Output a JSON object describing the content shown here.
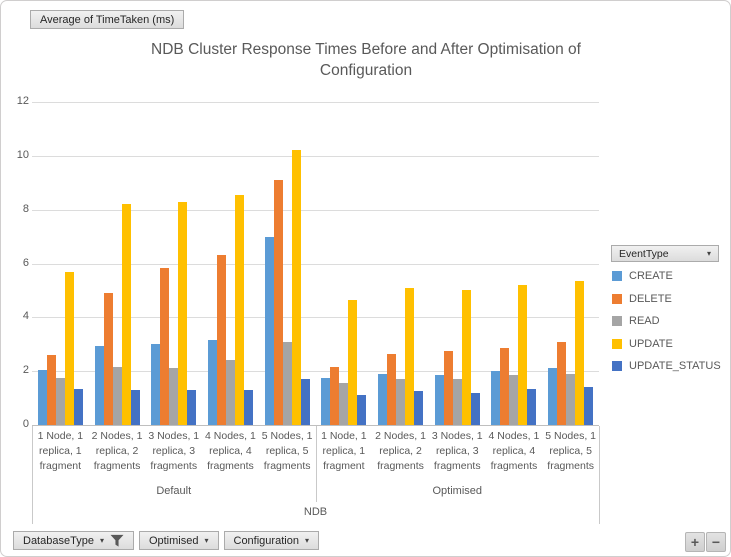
{
  "pivot": {
    "value_field_button": "Average of TimeTaken (ms)",
    "legend_field_button": "EventType",
    "axis_field_buttons": [
      {
        "label": "DatabaseType",
        "icon": "filter"
      },
      {
        "label": "Optimised",
        "icon": "dropdown"
      },
      {
        "label": "Configuration",
        "icon": "dropdown"
      }
    ],
    "zoom_in_label": "+",
    "zoom_out_label": "−"
  },
  "chart_data": {
    "type": "bar",
    "title": "NDB Cluster Response Times Before and After Optimisation of Configuration",
    "xlabel": "",
    "ylabel": "",
    "ylim": [
      0,
      12
    ],
    "yticks": [
      0,
      2,
      4,
      6,
      8,
      10,
      12
    ],
    "grid": true,
    "legend_position": "right",
    "group_axis": {
      "top_label": "NDB",
      "groups": [
        "Default",
        "Optimised"
      ]
    },
    "categories": [
      "1 Node, 1 replica, 1 fragment",
      "2 Nodes, 1 replica, 2 fragments",
      "3 Nodes, 1 replica, 3 fragments",
      "4 Nodes, 1 replica, 4 fragments",
      "5 Nodes, 1 replica, 5 fragments",
      "1 Node, 1 replica, 1 fragment",
      "2 Nodes, 1 replica, 2 fragments",
      "3 Nodes, 1 replica, 3 fragments",
      "4 Nodes, 1 replica, 4 fragments",
      "5 Nodes, 1 replica, 5 fragments"
    ],
    "series": [
      {
        "name": "CREATE",
        "color": "#5B9BD5",
        "values": [
          2.05,
          2.95,
          3.0,
          3.15,
          7.0,
          1.75,
          1.9,
          1.85,
          2.0,
          2.1
        ]
      },
      {
        "name": "DELETE",
        "color": "#ED7D31",
        "values": [
          2.6,
          4.9,
          5.85,
          6.3,
          9.1,
          2.15,
          2.65,
          2.75,
          2.85,
          3.1
        ]
      },
      {
        "name": "READ",
        "color": "#A5A5A5",
        "values": [
          1.75,
          2.15,
          2.1,
          2.4,
          3.1,
          1.55,
          1.7,
          1.7,
          1.85,
          1.9
        ]
      },
      {
        "name": "UPDATE",
        "color": "#FFC000",
        "values": [
          5.7,
          8.2,
          8.3,
          8.55,
          10.2,
          4.65,
          5.1,
          5.0,
          5.2,
          5.35
        ]
      },
      {
        "name": "UPDATE_STATUS",
        "color": "#4472C4",
        "values": [
          1.35,
          1.3,
          1.3,
          1.3,
          1.7,
          1.1,
          1.25,
          1.2,
          1.35,
          1.4
        ]
      }
    ]
  }
}
